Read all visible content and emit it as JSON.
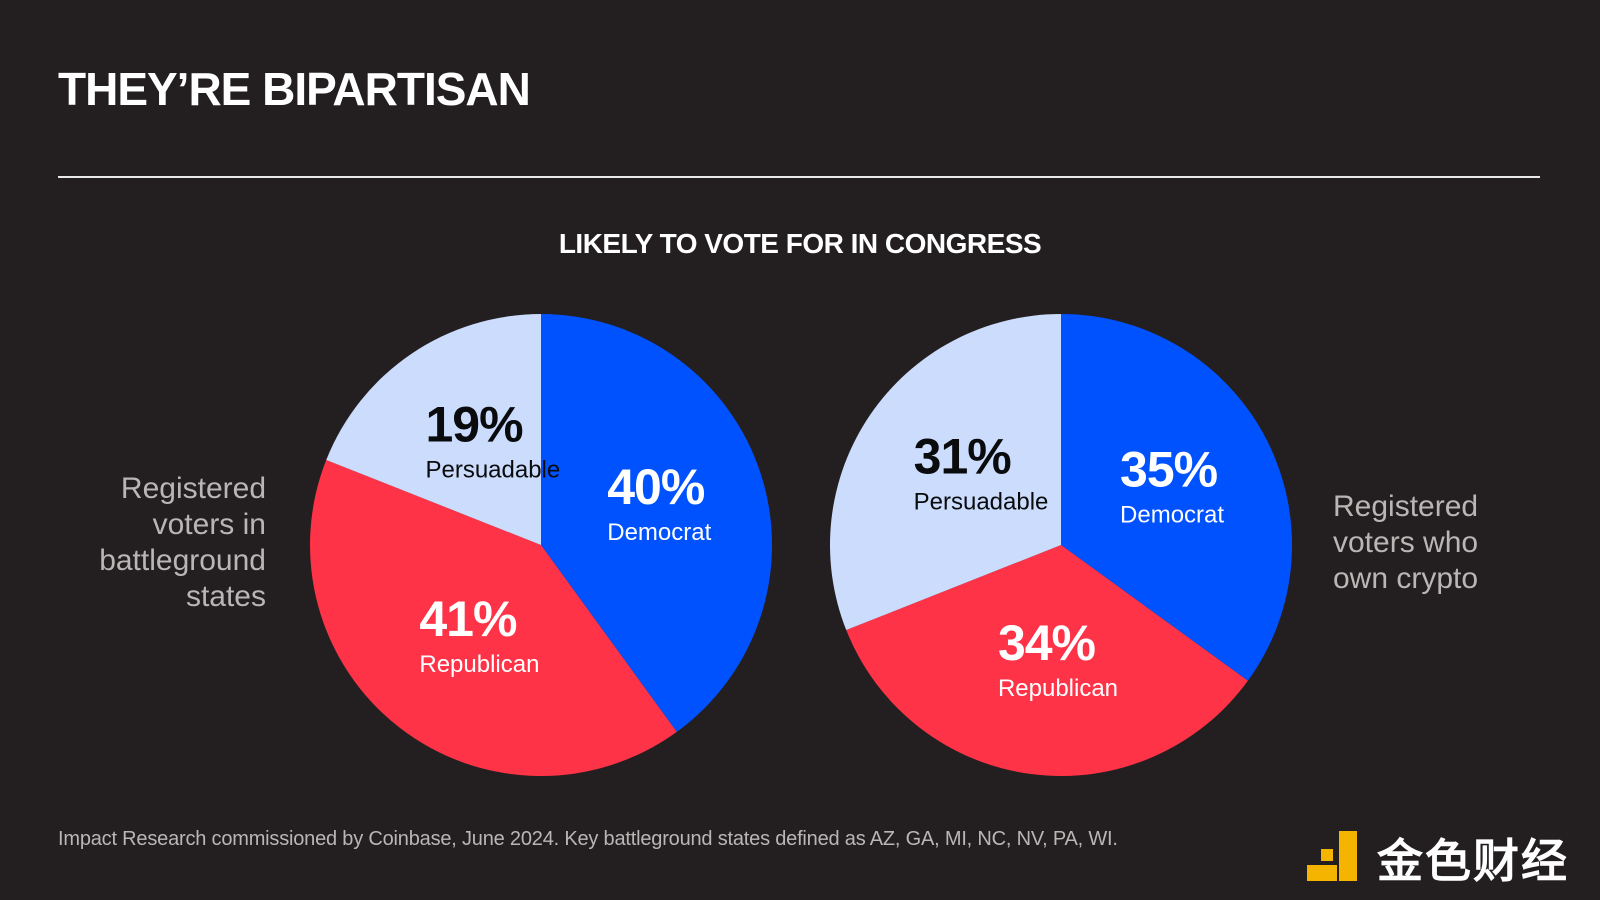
{
  "title": "THEY’RE BIPARTISAN",
  "subtitle": "LIKELY TO VOTE FOR IN CONGRESS",
  "chart_data": [
    {
      "type": "pie",
      "group_label": [
        "Registered",
        "voters in",
        "battleground",
        "states"
      ],
      "slices": [
        {
          "name": "Democrat",
          "value": 40,
          "pct_label": "40%",
          "color": "#0052ff",
          "text_color": "#ffffff"
        },
        {
          "name": "Republican",
          "value": 41,
          "pct_label": "41%",
          "color": "#ff3347",
          "text_color": "#ffffff"
        },
        {
          "name": "Persuadable",
          "value": 19,
          "pct_label": "19%",
          "color": "#ccdcfc",
          "text_color": "#0a0b0d"
        }
      ]
    },
    {
      "type": "pie",
      "group_label": [
        "Registered",
        "voters who",
        "own crypto"
      ],
      "slices": [
        {
          "name": "Democrat",
          "value": 35,
          "pct_label": "35%",
          "color": "#0052ff",
          "text_color": "#ffffff"
        },
        {
          "name": "Republican",
          "value": 34,
          "pct_label": "34%",
          "color": "#ff3347",
          "text_color": "#ffffff"
        },
        {
          "name": "Persuadable",
          "value": 31,
          "pct_label": "31%",
          "color": "#ccdcfc",
          "text_color": "#0a0b0d"
        }
      ]
    }
  ],
  "footnote": "Impact Research commissioned by Coinbase, June 2024. Key battleground states defined as AZ, GA, MI, NC, NV, PA, WI.",
  "brand": {
    "name": "金色财经",
    "icon": "golden-logo-icon",
    "color": "#f5b400"
  }
}
